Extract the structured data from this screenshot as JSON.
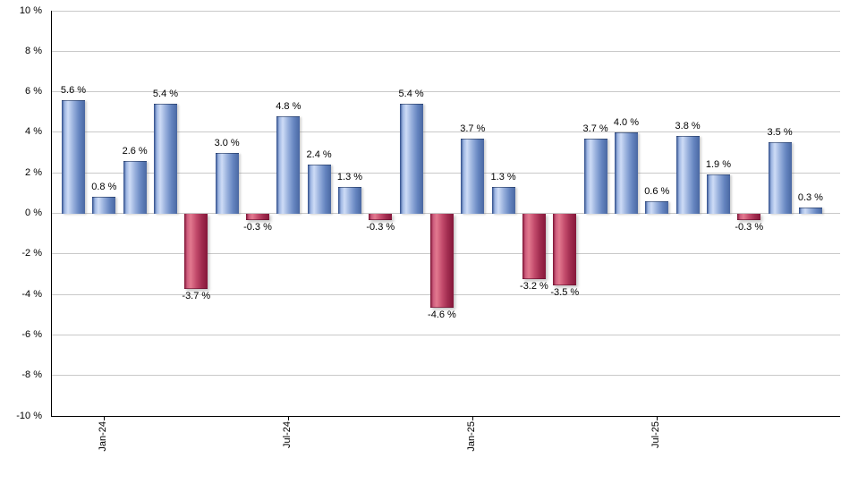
{
  "chart_data": {
    "type": "bar",
    "title": "",
    "unit": "%",
    "values": [
      5.6,
      0.8,
      2.6,
      5.4,
      -3.7,
      3.0,
      -0.3,
      4.8,
      2.4,
      1.3,
      -0.3,
      5.4,
      -4.6,
      3.7,
      1.3,
      -3.2,
      -3.5,
      3.7,
      4.0,
      0.6,
      3.8,
      1.9,
      -0.3,
      3.5,
      0.3
    ],
    "bar_value_labels": [
      "5.6 %",
      "0.8 %",
      "2.6 %",
      "5.4 %",
      "-3.7 %",
      "3.0 %",
      "-0.3 %",
      "4.8 %",
      "2.4 %",
      "1.3 %",
      "-0.3 %",
      "5.4 %",
      "-4.6 %",
      "3.7 %",
      "1.3 %",
      "-3.2 %",
      "-3.5 %",
      "3.7 %",
      "4.0 %",
      "0.6 %",
      "3.8 %",
      "1.9 %",
      "-0.3 %",
      "3.5 %",
      "0.3 %"
    ],
    "x_ticks": [
      {
        "label": "Jan-24",
        "bar_index": 1
      },
      {
        "label": "Jul-24",
        "bar_index": 7
      },
      {
        "label": "Jan-25",
        "bar_index": 13
      },
      {
        "label": "Jul-25",
        "bar_index": 19
      }
    ],
    "y_ticks": [
      {
        "value": 10,
        "label": "10 %"
      },
      {
        "value": 8,
        "label": "8 %"
      },
      {
        "value": 6,
        "label": "6 %"
      },
      {
        "value": 4,
        "label": "4 %"
      },
      {
        "value": 2,
        "label": "2 %"
      },
      {
        "value": 0,
        "label": "0 %"
      },
      {
        "value": -2,
        "label": "-2 %"
      },
      {
        "value": -4,
        "label": "-4 %"
      },
      {
        "value": -6,
        "label": "-6 %"
      },
      {
        "value": -8,
        "label": "-8 %"
      },
      {
        "value": -10,
        "label": "-10 %"
      }
    ],
    "ylim": [
      -10,
      10
    ],
    "grid": true,
    "legend": "none",
    "colors": {
      "positive_bar_dark": "#2c4a88",
      "positive_bar_light": "#9db5e2",
      "positive_bar_highlight": "#cedcf6",
      "positive_bar_mid": "#93acda",
      "positive_bar_body": "#6585c0",
      "positive_bar_edge": "#4a68a2",
      "negative_bar_dark": "#7a1030",
      "negative_bar_light": "#cc5b7c",
      "negative_bar_highlight": "#e2798f",
      "negative_bar_mid": "#c24a6b",
      "negative_bar_body": "#a02c4f",
      "negative_bar_edge": "#85173a",
      "gridline": "#c9c9c9",
      "axis_line": "#000000",
      "text": "#000000"
    }
  }
}
